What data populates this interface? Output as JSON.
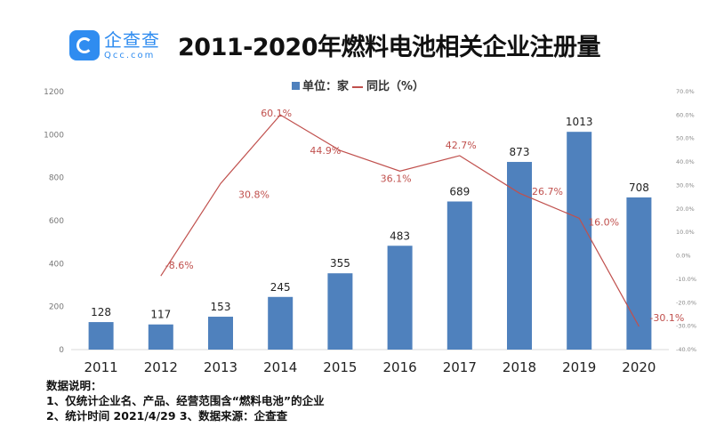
{
  "logo": {
    "cn": "企查查",
    "en": "Qcc.com"
  },
  "title": "2011-2020年燃料电池相关企业注册量",
  "legend": {
    "bar": "单位：家",
    "line": "同比（%）"
  },
  "notes": [
    "数据说明：",
    "1、仅统计企业名、产品、经营范围含“燃料电池”的企业",
    "2、统计时间 2021/4/29    3、数据来源：企查查"
  ],
  "colors": {
    "bar": "#4f81bd",
    "line": "#c0504d"
  },
  "chart_data": {
    "type": "bar+line",
    "title": "2011-2020年燃料电池相关企业注册量",
    "categories": [
      "2011",
      "2012",
      "2013",
      "2014",
      "2015",
      "2016",
      "2017",
      "2018",
      "2019",
      "2020"
    ],
    "series": [
      {
        "name": "单位：家",
        "type": "bar",
        "axis": "left",
        "values": [
          128,
          117,
          153,
          245,
          355,
          483,
          689,
          873,
          1013,
          708
        ]
      },
      {
        "name": "同比（%）",
        "type": "line",
        "axis": "right",
        "values": [
          null,
          -8.6,
          30.8,
          60.1,
          44.9,
          36.1,
          42.7,
          26.7,
          16.0,
          -30.1
        ]
      }
    ],
    "left_axis": {
      "ylim": [
        0,
        1200
      ],
      "ticks": [
        "0",
        "200",
        "400",
        "600",
        "800",
        "1000",
        "1200"
      ]
    },
    "right_axis": {
      "ylim": [
        -40,
        70
      ],
      "ticks": [
        "-40.0%",
        "-30.0%",
        "-20.0%",
        "-10.0%",
        "0.0%",
        "10.0%",
        "20.0%",
        "30.0%",
        "40.0%",
        "50.0%",
        "60.0%",
        "70.0%"
      ]
    },
    "grid": false,
    "legend": "top-center"
  }
}
